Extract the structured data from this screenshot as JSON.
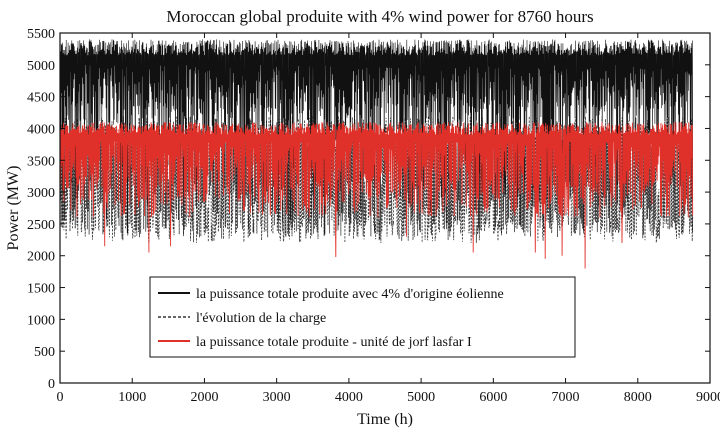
{
  "chart_data": {
    "type": "line",
    "title": "Moroccan global produite with 4% wind power for 8760 hours",
    "xlabel": "Time (h)",
    "ylabel": "Power (MW)",
    "xlim": [
      0,
      9000
    ],
    "ylim": [
      0,
      5500
    ],
    "xticks": [
      0,
      1000,
      2000,
      3000,
      4000,
      5000,
      6000,
      7000,
      8000,
      9000
    ],
    "yticks": [
      0,
      500,
      1000,
      1500,
      2000,
      2500,
      3000,
      3500,
      4000,
      4500,
      5000,
      5500
    ],
    "x_extent": [
      0,
      8760
    ],
    "legend_position": "lower-center",
    "grid": false,
    "series": [
      {
        "name": "la puissance totale produite avec 4% d'origine éolienne",
        "color": "#111111",
        "style": "solid",
        "band_top": [
          5400,
          5150,
          5280
        ],
        "band_bottom": [
          4000,
          4400,
          3400
        ],
        "envelope": "dense oscillation mostly between ~4300 and ~5300 MW with frequent dips to ~2300 MW"
      },
      {
        "name": "l'évolution de la charge",
        "color": "#333333",
        "style": "dashed",
        "envelope": "daily load cycle oscillating between ~2200 and ~4200 MW"
      },
      {
        "name": "la puissance totale produite - unité de jorf lasfar I",
        "color": "#e0302a",
        "style": "solid",
        "envelope": "oscillation between ~2500 and ~4100 MW with occasional dips to ~1800 MW",
        "notable_dips": [
          {
            "x": 620,
            "y": 2150
          },
          {
            "x": 1230,
            "y": 2050
          },
          {
            "x": 1530,
            "y": 2150
          },
          {
            "x": 3820,
            "y": 1980
          },
          {
            "x": 4800,
            "y": 2300
          },
          {
            "x": 5720,
            "y": 2050
          },
          {
            "x": 6580,
            "y": 2050
          },
          {
            "x": 6720,
            "y": 1950
          },
          {
            "x": 6950,
            "y": 2000
          },
          {
            "x": 7270,
            "y": 1800
          },
          {
            "x": 7780,
            "y": 2200
          }
        ]
      }
    ]
  }
}
